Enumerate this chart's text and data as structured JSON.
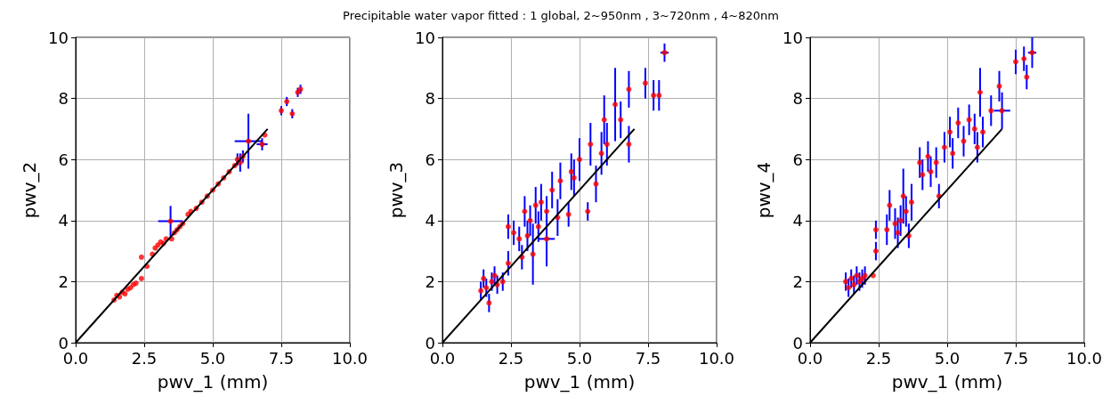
{
  "chart_data": [
    {
      "type": "scatter",
      "xlabel": "pwv_1 (mm)",
      "ylabel": "pwv_2",
      "xlim": [
        0,
        10
      ],
      "ylim": [
        0,
        10
      ],
      "xticks": [
        {
          "value": 0,
          "label": "0.0"
        },
        {
          "value": 2.5,
          "label": "2.5"
        },
        {
          "value": 5,
          "label": "5.0"
        },
        {
          "value": 7.5,
          "label": "7.5"
        },
        {
          "value": 10,
          "label": "10.0"
        }
      ],
      "yticks": [
        0,
        2,
        4,
        6,
        8,
        10
      ],
      "grid": true,
      "series": [
        {
          "color": "#ff0000",
          "marker": "circle",
          "x": [
            1.4,
            1.5,
            1.6,
            1.7,
            1.8,
            1.9,
            2.0,
            2.1,
            2.2,
            2.4,
            2.4,
            2.6,
            2.8,
            2.9,
            3.0,
            3.1,
            3.2,
            3.3,
            3.46,
            3.5,
            3.6,
            3.7,
            3.8,
            3.9,
            4.1,
            4.2,
            4.4,
            4.6,
            4.8,
            5.0,
            5.2,
            5.4,
            5.6,
            5.8,
            5.9,
            6.0,
            6.1,
            6.3,
            6.8,
            6.9,
            7.5,
            7.7,
            7.9,
            8.1,
            8.2
          ],
          "values": [
            1.4,
            1.55,
            1.5,
            1.65,
            1.6,
            1.75,
            1.8,
            1.9,
            1.95,
            2.1,
            2.8,
            2.5,
            2.9,
            3.1,
            3.2,
            3.3,
            3.25,
            3.4,
            3.98,
            3.4,
            3.6,
            3.7,
            3.8,
            3.9,
            4.2,
            4.3,
            4.4,
            4.6,
            4.8,
            5.0,
            5.2,
            5.4,
            5.6,
            5.8,
            6.0,
            5.9,
            6.1,
            6.6,
            6.5,
            6.8,
            7.6,
            7.9,
            7.5,
            8.2,
            8.3
          ],
          "errors": [
            null,
            null,
            null,
            null,
            null,
            null,
            null,
            null,
            null,
            null,
            null,
            null,
            null,
            null,
            null,
            null,
            null,
            null,
            0.5,
            null,
            null,
            null,
            null,
            null,
            null,
            null,
            null,
            null,
            null,
            null,
            null,
            null,
            null,
            null,
            0.2,
            0.3,
            0.2,
            0.9,
            0.2,
            null,
            0.15,
            0.15,
            0.15,
            0.15,
            0.15
          ],
          "xerrors": [
            null,
            null,
            null,
            null,
            null,
            null,
            null,
            null,
            null,
            null,
            null,
            null,
            null,
            null,
            null,
            null,
            null,
            null,
            0.45,
            null,
            null,
            null,
            null,
            null,
            null,
            null,
            null,
            null,
            null,
            null,
            null,
            null,
            null,
            null,
            null,
            null,
            null,
            0.5,
            0.2,
            null,
            null,
            null,
            null,
            null,
            null
          ]
        },
        {
          "type": "line",
          "marker": "none",
          "color": "#000000",
          "x": [
            0,
            7
          ],
          "values": [
            0,
            7
          ]
        }
      ]
    },
    {
      "type": "scatter",
      "title": "Precipitable water vapor fitted : 1 global, 2~950nm , 3~720nm , 4~820nm",
      "xlabel": "pwv_1 (mm)",
      "ylabel": "pwv_3",
      "xlim": [
        0,
        10
      ],
      "ylim": [
        0,
        10
      ],
      "xticks": [
        {
          "value": 0,
          "label": "0.0"
        },
        {
          "value": 2.5,
          "label": "2.5"
        },
        {
          "value": 5,
          "label": "5.0"
        },
        {
          "value": 7.5,
          "label": "7.5"
        },
        {
          "value": 10,
          "label": "10.0"
        }
      ],
      "yticks": [
        0,
        2,
        4,
        6,
        8,
        10
      ],
      "grid": true,
      "series": [
        {
          "color": "#ff0000",
          "marker": "circle",
          "x": [
            1.4,
            1.5,
            1.6,
            1.7,
            1.8,
            1.9,
            2.0,
            2.2,
            2.4,
            2.4,
            2.6,
            2.8,
            2.9,
            3.0,
            3.1,
            3.2,
            3.3,
            3.4,
            3.5,
            3.6,
            3.8,
            3.8,
            4.0,
            4.2,
            4.3,
            4.6,
            4.7,
            4.8,
            5.0,
            5.3,
            5.4,
            5.6,
            5.8,
            5.9,
            6.0,
            6.3,
            6.5,
            6.8,
            6.8,
            7.4,
            7.7,
            7.9,
            8.1
          ],
          "values": [
            1.7,
            2.1,
            1.8,
            1.3,
            2.0,
            2.2,
            1.9,
            2.0,
            2.6,
            3.8,
            3.6,
            3.4,
            2.8,
            4.3,
            3.5,
            4.0,
            2.9,
            4.5,
            3.8,
            4.6,
            3.4,
            4.3,
            5.0,
            4.1,
            5.3,
            4.2,
            5.6,
            5.4,
            6.0,
            4.3,
            6.5,
            5.2,
            6.2,
            7.3,
            6.5,
            7.8,
            7.3,
            8.3,
            6.5,
            8.5,
            8.1,
            8.1,
            9.5
          ],
          "errors": [
            0.3,
            0.3,
            0.3,
            0.3,
            0.3,
            0.3,
            0.3,
            0.3,
            0.4,
            0.4,
            0.4,
            0.4,
            0.4,
            0.5,
            0.5,
            0.5,
            1.0,
            0.6,
            0.5,
            0.6,
            0.9,
            0.5,
            0.6,
            0.6,
            0.6,
            0.4,
            0.6,
            0.6,
            0.7,
            0.3,
            0.7,
            0.6,
            0.7,
            0.8,
            0.7,
            1.2,
            0.6,
            0.6,
            0.6,
            0.5,
            0.5,
            0.5,
            0.3
          ],
          "xerrors": [
            null,
            null,
            null,
            null,
            null,
            null,
            null,
            null,
            null,
            null,
            null,
            null,
            null,
            null,
            null,
            null,
            null,
            null,
            null,
            null,
            0.3,
            null,
            null,
            null,
            null,
            null,
            null,
            null,
            null,
            null,
            null,
            null,
            null,
            null,
            null,
            null,
            null,
            null,
            null,
            null,
            null,
            null,
            0.15
          ]
        },
        {
          "type": "line",
          "marker": "none",
          "color": "#000000",
          "x": [
            0,
            7
          ],
          "values": [
            0,
            7
          ]
        }
      ]
    },
    {
      "type": "scatter",
      "xlabel": "pwv_1 (mm)",
      "ylabel": "pwv_4",
      "xlim": [
        0,
        10
      ],
      "ylim": [
        0,
        10
      ],
      "xticks": [
        {
          "value": 0,
          "label": "0.0"
        },
        {
          "value": 2.5,
          "label": "2.5"
        },
        {
          "value": 5,
          "label": "5.0"
        },
        {
          "value": 7.5,
          "label": "7.5"
        },
        {
          "value": 10,
          "label": "10.0"
        }
      ],
      "yticks": [
        0,
        2,
        4,
        6,
        8,
        10
      ],
      "grid": true,
      "series": [
        {
          "color": "#ff0000",
          "marker": "circle",
          "x": [
            1.3,
            1.4,
            1.5,
            1.6,
            1.7,
            1.8,
            1.9,
            2.0,
            2.3,
            2.4,
            2.4,
            2.8,
            2.9,
            3.1,
            3.2,
            3.3,
            3.4,
            3.5,
            3.6,
            3.7,
            4.0,
            4.1,
            4.3,
            4.4,
            4.6,
            4.7,
            4.9,
            5.1,
            5.2,
            5.4,
            5.6,
            5.8,
            6.0,
            6.1,
            6.3,
            6.2,
            6.6,
            6.9,
            7.0,
            7.5,
            7.8,
            7.9,
            8.1
          ],
          "values": [
            2.0,
            1.8,
            2.1,
            1.9,
            2.2,
            2.0,
            2.1,
            2.2,
            2.2,
            3.0,
            3.7,
            3.7,
            4.5,
            3.9,
            3.6,
            4.0,
            4.8,
            4.3,
            3.5,
            4.6,
            5.9,
            5.5,
            6.1,
            5.6,
            5.9,
            4.8,
            6.4,
            6.9,
            6.2,
            7.2,
            6.6,
            7.3,
            7.0,
            6.4,
            6.9,
            8.2,
            7.6,
            8.4,
            7.6,
            9.2,
            9.3,
            8.7,
            9.5
          ],
          "errors": [
            0.3,
            0.3,
            0.3,
            0.3,
            0.3,
            0.3,
            0.3,
            0.3,
            null,
            0.3,
            0.3,
            0.5,
            0.5,
            0.5,
            0.5,
            0.5,
            0.9,
            0.5,
            0.4,
            0.6,
            0.5,
            0.5,
            0.5,
            0.5,
            0.5,
            0.4,
            0.5,
            0.5,
            0.5,
            0.5,
            0.5,
            0.5,
            0.5,
            0.5,
            0.5,
            0.8,
            0.5,
            0.5,
            0.6,
            0.4,
            0.4,
            0.4,
            0.5
          ],
          "xerrors": [
            null,
            null,
            null,
            null,
            null,
            null,
            null,
            null,
            null,
            null,
            null,
            null,
            null,
            null,
            null,
            null,
            null,
            null,
            null,
            null,
            null,
            null,
            null,
            null,
            null,
            null,
            null,
            null,
            null,
            null,
            null,
            null,
            null,
            null,
            null,
            null,
            null,
            null,
            0.3,
            null,
            null,
            null,
            0.15
          ]
        },
        {
          "type": "line",
          "marker": "none",
          "color": "#000000",
          "x": [
            0,
            7
          ],
          "values": [
            0,
            7
          ]
        }
      ]
    }
  ]
}
